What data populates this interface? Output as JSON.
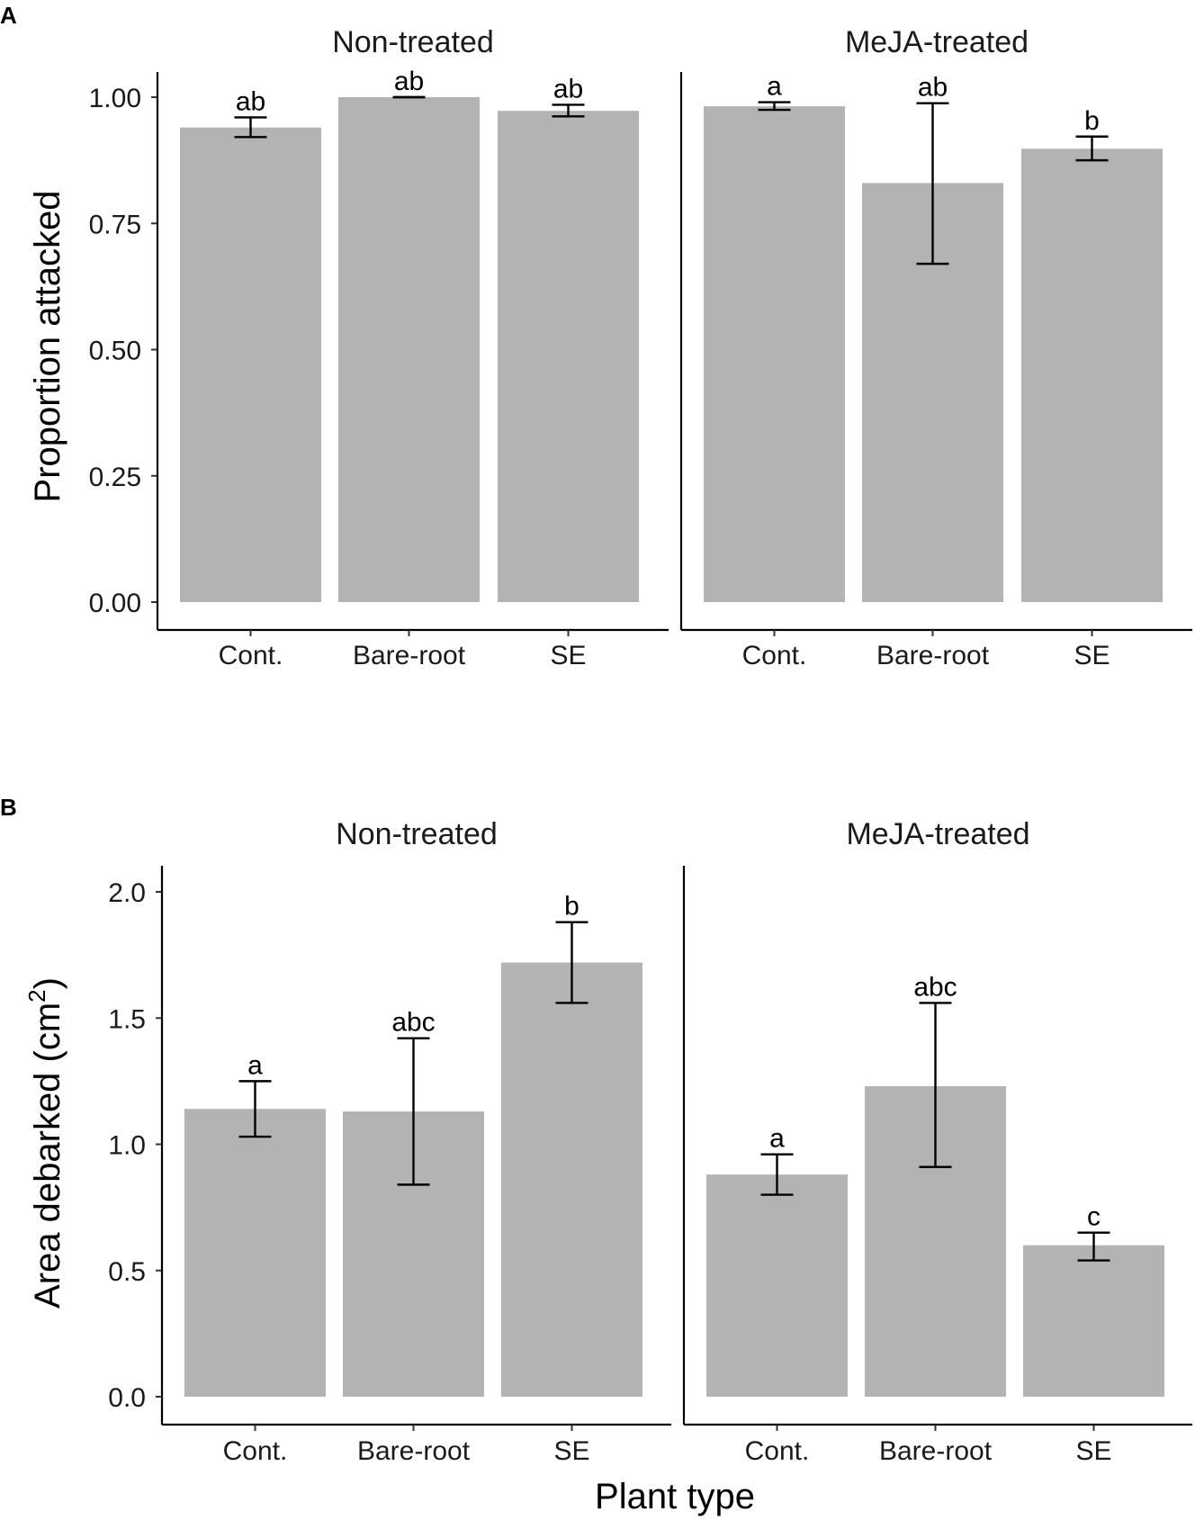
{
  "chart_data": [
    {
      "type": "bar",
      "panel_label": "A",
      "facets": [
        "Non-treated",
        "MeJA-treated"
      ],
      "categories": [
        "Cont.",
        "Bare-root",
        "SE"
      ],
      "ylabel": "Proportion attacked",
      "xlabel": "",
      "ylim": [
        0,
        1.05
      ],
      "yticks": [
        0,
        0.25,
        0.5,
        0.75,
        1.0
      ],
      "ytick_labels": [
        "0.00",
        "0.25",
        "0.50",
        "0.75",
        "1.00"
      ],
      "bar_color": "#b3b3b3",
      "series": [
        {
          "name": "Non-treated",
          "values": [
            0.94,
            1.0,
            0.973
          ],
          "err_low": [
            0.921,
            1.0,
            0.962
          ],
          "err_high": [
            0.96,
            1.0,
            0.985
          ],
          "letters": [
            "ab",
            "ab",
            "ab"
          ]
        },
        {
          "name": "MeJA-treated",
          "values": [
            0.982,
            0.83,
            0.898
          ],
          "err_low": [
            0.975,
            0.67,
            0.875
          ],
          "err_high": [
            0.99,
            0.988,
            0.922
          ],
          "letters": [
            "a",
            "ab",
            "b"
          ]
        }
      ]
    },
    {
      "type": "bar",
      "panel_label": "B",
      "facets": [
        "Non-treated",
        "MeJA-treated"
      ],
      "categories": [
        "Cont.",
        "Bare-root",
        "SE"
      ],
      "ylabel_main": "Area debarked (cm",
      "ylabel_sup": "2",
      "ylabel_end": ")",
      "xlabel": "Plant type",
      "ylim": [
        0,
        2.1
      ],
      "yticks": [
        0,
        0.5,
        1.0,
        1.5,
        2.0
      ],
      "ytick_labels": [
        "0.0",
        "0.5",
        "1.0",
        "1.5",
        "2.0"
      ],
      "bar_color": "#b3b3b3",
      "series": [
        {
          "name": "Non-treated",
          "values": [
            1.14,
            1.13,
            1.72
          ],
          "err_low": [
            1.03,
            0.84,
            1.56
          ],
          "err_high": [
            1.25,
            1.42,
            1.88
          ],
          "letters": [
            "a",
            "abc",
            "b"
          ]
        },
        {
          "name": "MeJA-treated",
          "values": [
            0.88,
            1.23,
            0.6
          ],
          "err_low": [
            0.8,
            0.91,
            0.54
          ],
          "err_high": [
            0.96,
            1.56,
            0.65
          ],
          "letters": [
            "a",
            "abc",
            "c"
          ]
        }
      ]
    }
  ]
}
